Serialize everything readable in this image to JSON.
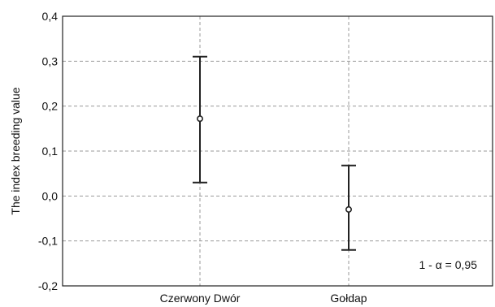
{
  "chart_data": {
    "type": "errorbar",
    "title": "",
    "xlabel": "",
    "ylabel": "The index breeding value",
    "ylim": [
      -0.2,
      0.4
    ],
    "y_ticks": [
      -0.2,
      -0.1,
      0.0,
      0.1,
      0.2,
      0.3,
      0.4
    ],
    "y_tick_labels": [
      "-0,2",
      "-0,1",
      "0,0",
      "0,1",
      "0,2",
      "0,3",
      "0,4"
    ],
    "categories": [
      "Czerwony Dwór",
      "Gołdap"
    ],
    "means": [
      0.172,
      -0.03
    ],
    "lower": [
      0.03,
      -0.12
    ],
    "upper": [
      0.31,
      0.068
    ],
    "grid": true,
    "annotation": "1 - α = 0,95"
  }
}
